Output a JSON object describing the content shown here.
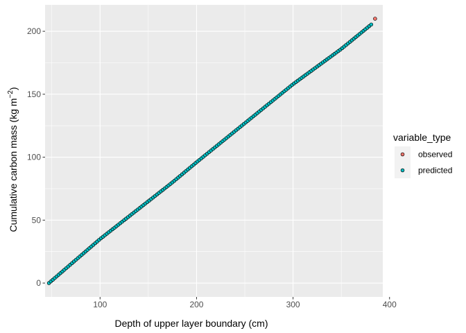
{
  "chart_data": {
    "type": "scatter",
    "title": "",
    "xlabel": "Depth of upper layer boundary (cm)",
    "ylabel_main": "Cumulative carbon mass (kg m",
    "ylabel_sup": "−2",
    "ylabel_close": ")",
    "xlim": [
      43,
      393
    ],
    "ylim": [
      -11,
      221
    ],
    "x_ticks": [
      100,
      200,
      300,
      400
    ],
    "y_ticks": [
      0,
      50,
      100,
      150,
      200
    ],
    "grid": true,
    "legend_position": "right",
    "legend_title": "variable_type",
    "series": [
      {
        "name": "observed",
        "color": "#F8766D",
        "points": [
          [
            385,
            210
          ]
        ]
      },
      {
        "name": "predicted",
        "color": "#00BFC4",
        "x_start": 47,
        "x_end": 382,
        "x_step": 2,
        "path": [
          [
            47,
            0
          ],
          [
            100,
            35
          ],
          [
            150,
            65
          ],
          [
            175,
            80
          ],
          [
            200,
            96
          ],
          [
            250,
            127
          ],
          [
            300,
            158
          ],
          [
            350,
            186
          ],
          [
            382,
            206
          ]
        ]
      }
    ]
  }
}
